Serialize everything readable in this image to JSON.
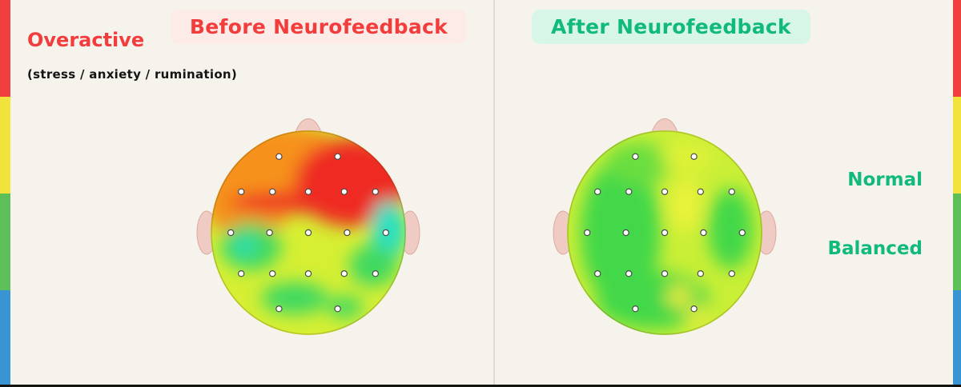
{
  "background_color": "#f6f3ed",
  "divider_color": "#dddcd7",
  "before_panel": {
    "title": "Before Neurofeedback",
    "title_color": "#f23d3d",
    "title_bg": "#fcebe7",
    "condition_label": "Overactive",
    "condition_color": "#f23d3d",
    "condition_sublabel": "(stress / anxiety / rumination)",
    "head_map_state": "overactive frontal red/orange EEG topography"
  },
  "after_panel": {
    "title": "After Neurofeedback",
    "title_color": "#10ba7c",
    "title_bg": "#d8f6e8",
    "state_labels": [
      "Normal",
      "Balanced"
    ],
    "state_color": "#10ba7c",
    "head_map_state": "balanced green EEG topography"
  },
  "color_scales": {
    "left": [
      "#f13e3e",
      "#f2e33c",
      "#5cbf57",
      "#3894d2"
    ],
    "right": [
      "#f13e3e",
      "#f2e33c",
      "#5cbf57",
      "#3894d2"
    ]
  },
  "heatmap_palette": {
    "red": "#ee2c24",
    "orange": "#f6921e",
    "yellow_green": "#d6ef33",
    "green": "#3fd960",
    "cyan": "#27dfc3",
    "skin": "#f0cbc4"
  }
}
